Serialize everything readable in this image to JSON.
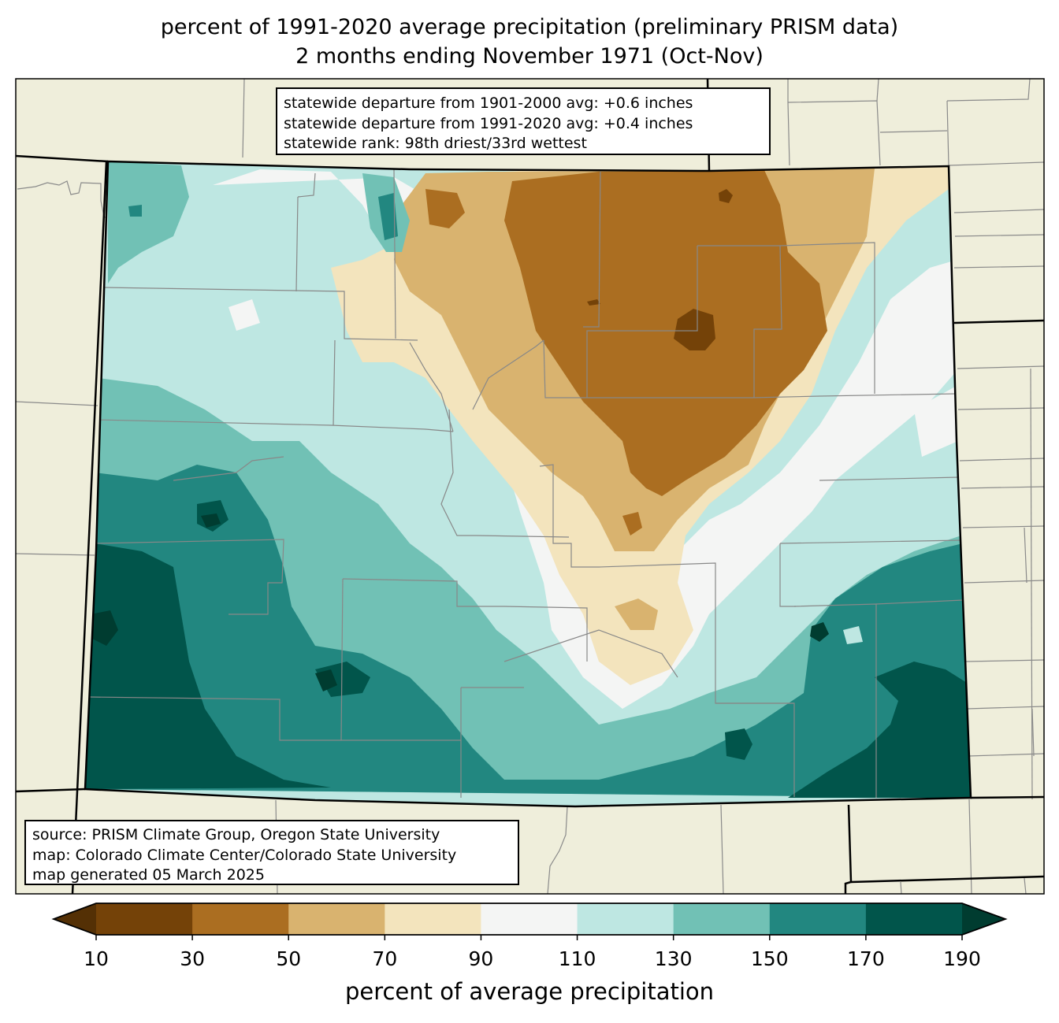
{
  "title": {
    "line1": "percent of 1991-2020 average precipitation (preliminary PRISM data)",
    "line2": "2 months ending November 1971 (Oct-Nov)"
  },
  "stats_box": {
    "lines": [
      "statewide departure from 1901-2000 avg: +0.6 inches",
      "statewide departure from 1991-2020 avg: +0.4 inches",
      "statewide rank: 98th driest/33rd wettest"
    ]
  },
  "source_box": {
    "lines": [
      "source: PRISM Climate Group, Oregon State University",
      "map: Colorado Climate Center/Colorado State University",
      "map generated 05 March 2025"
    ]
  },
  "colorbar": {
    "label": "percent of average precipitation",
    "ticks": [
      "10",
      "30",
      "50",
      "70",
      "90",
      "110",
      "130",
      "150",
      "170",
      "190"
    ],
    "under_color": "#543005",
    "over_color": "#003c30",
    "bins": [
      {
        "range": "10-30",
        "color": "#744208"
      },
      {
        "range": "30-50",
        "color": "#ab6e21"
      },
      {
        "range": "50-70",
        "color": "#d9b36f"
      },
      {
        "range": "70-90",
        "color": "#f3e4bd"
      },
      {
        "range": "90-110",
        "color": "#f4f5f4"
      },
      {
        "range": "110-130",
        "color": "#bee7e2"
      },
      {
        "range": "130-150",
        "color": "#71c1b5"
      },
      {
        "range": "150-170",
        "color": "#228780"
      },
      {
        "range": "170-190",
        "color": "#01554b"
      }
    ]
  },
  "map": {
    "region": "Colorado",
    "background_color": "#efeedb",
    "variable": "percent of 1991-2020 average precipitation",
    "summary": {
      "northeast_plains": "10-50% (driest, brown)",
      "central_east": "50-90% (tan)",
      "southwest_mountains": "150-190%+ (wettest, dark teal)",
      "southeast_corner": "130-190% (teal)",
      "northwest": "110-150% (light teal)"
    }
  },
  "chart_data": {
    "type": "heatmap",
    "title": "percent of 1991-2020 average precipitation (preliminary PRISM data) — 2 months ending November 1971 (Oct-Nov)",
    "colorbar_label": "percent of average precipitation",
    "levels": [
      10,
      30,
      50,
      70,
      90,
      110,
      130,
      150,
      170,
      190
    ],
    "extend": "both",
    "statewide_departure_1901_2000_in": 0.6,
    "statewide_departure_1991_2020_in": 0.4,
    "statewide_rank": "98th driest/33rd wettest"
  }
}
